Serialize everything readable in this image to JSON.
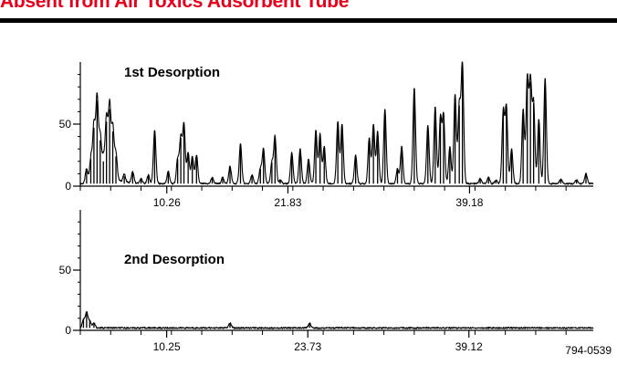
{
  "header": {
    "title": "Absent from Air Toxics Adsorbent Tube",
    "title_color": "#e8001c"
  },
  "footer": {
    "code": "794-0539"
  },
  "chart_data": [
    {
      "type": "line",
      "title": "1st Desorption",
      "xlabel": "",
      "ylabel": "",
      "ylim": [
        0,
        100
      ],
      "yticks": [
        0,
        50
      ],
      "xlim": [
        2.0,
        51.0
      ],
      "xticks": [
        10.26,
        21.83,
        39.18
      ],
      "grid": false,
      "baseline": 2,
      "peaks": [
        {
          "x": 2.6,
          "y": 12
        },
        {
          "x": 3.0,
          "y": 20
        },
        {
          "x": 3.3,
          "y": 45
        },
        {
          "x": 3.6,
          "y": 67
        },
        {
          "x": 3.9,
          "y": 35
        },
        {
          "x": 4.2,
          "y": 18
        },
        {
          "x": 4.5,
          "y": 50
        },
        {
          "x": 4.8,
          "y": 60
        },
        {
          "x": 5.1,
          "y": 42
        },
        {
          "x": 5.4,
          "y": 22
        },
        {
          "x": 6.2,
          "y": 6
        },
        {
          "x": 7.0,
          "y": 9
        },
        {
          "x": 7.8,
          "y": 4
        },
        {
          "x": 8.5,
          "y": 7
        },
        {
          "x": 9.1,
          "y": 43
        },
        {
          "x": 10.4,
          "y": 10
        },
        {
          "x": 11.3,
          "y": 20
        },
        {
          "x": 11.6,
          "y": 37
        },
        {
          "x": 11.9,
          "y": 48
        },
        {
          "x": 12.3,
          "y": 25
        },
        {
          "x": 12.7,
          "y": 22
        },
        {
          "x": 13.1,
          "y": 23
        },
        {
          "x": 14.6,
          "y": 5
        },
        {
          "x": 15.6,
          "y": 5
        },
        {
          "x": 16.3,
          "y": 14
        },
        {
          "x": 17.3,
          "y": 32
        },
        {
          "x": 18.4,
          "y": 7
        },
        {
          "x": 19.2,
          "y": 12
        },
        {
          "x": 19.5,
          "y": 28
        },
        {
          "x": 20.3,
          "y": 17
        },
        {
          "x": 20.6,
          "y": 38
        },
        {
          "x": 21.1,
          "y": 3
        },
        {
          "x": 22.2,
          "y": 25
        },
        {
          "x": 23.0,
          "y": 28
        },
        {
          "x": 23.8,
          "y": 20
        },
        {
          "x": 24.5,
          "y": 43
        },
        {
          "x": 24.9,
          "y": 40
        },
        {
          "x": 25.3,
          "y": 30
        },
        {
          "x": 26.6,
          "y": 50
        },
        {
          "x": 27.0,
          "y": 48
        },
        {
          "x": 28.3,
          "y": 23
        },
        {
          "x": 29.6,
          "y": 37
        },
        {
          "x": 30.0,
          "y": 48
        },
        {
          "x": 30.4,
          "y": 42
        },
        {
          "x": 31.1,
          "y": 60
        },
        {
          "x": 32.3,
          "y": 12
        },
        {
          "x": 32.7,
          "y": 30
        },
        {
          "x": 33.9,
          "y": 77
        },
        {
          "x": 35.2,
          "y": 47
        },
        {
          "x": 35.9,
          "y": 62
        },
        {
          "x": 36.4,
          "y": 53
        },
        {
          "x": 36.7,
          "y": 55
        },
        {
          "x": 37.3,
          "y": 30
        },
        {
          "x": 37.8,
          "y": 72
        },
        {
          "x": 38.2,
          "y": 63
        },
        {
          "x": 38.5,
          "y": 97
        },
        {
          "x": 40.2,
          "y": 4
        },
        {
          "x": 41.0,
          "y": 5
        },
        {
          "x": 41.7,
          "y": 3
        },
        {
          "x": 42.4,
          "y": 58
        },
        {
          "x": 42.7,
          "y": 62
        },
        {
          "x": 43.2,
          "y": 28
        },
        {
          "x": 44.3,
          "y": 60
        },
        {
          "x": 44.7,
          "y": 85
        },
        {
          "x": 45.0,
          "y": 82
        },
        {
          "x": 45.3,
          "y": 65
        },
        {
          "x": 45.8,
          "y": 52
        },
        {
          "x": 46.4,
          "y": 85
        },
        {
          "x": 47.9,
          "y": 4
        },
        {
          "x": 49.4,
          "y": 3
        },
        {
          "x": 50.3,
          "y": 8
        }
      ]
    },
    {
      "type": "line",
      "title": "2nd Desorption",
      "xlabel": "",
      "ylabel": "",
      "ylim": [
        0,
        100
      ],
      "yticks": [
        0,
        50
      ],
      "xlim": [
        2.0,
        51.0
      ],
      "xticks": [
        10.25,
        23.73,
        39.12
      ],
      "grid": false,
      "baseline": 2,
      "peaks": [
        {
          "x": 2.3,
          "y": 7
        },
        {
          "x": 2.6,
          "y": 13
        },
        {
          "x": 2.9,
          "y": 6
        },
        {
          "x": 3.3,
          "y": 4
        },
        {
          "x": 16.3,
          "y": 4
        },
        {
          "x": 23.9,
          "y": 4
        }
      ]
    }
  ]
}
